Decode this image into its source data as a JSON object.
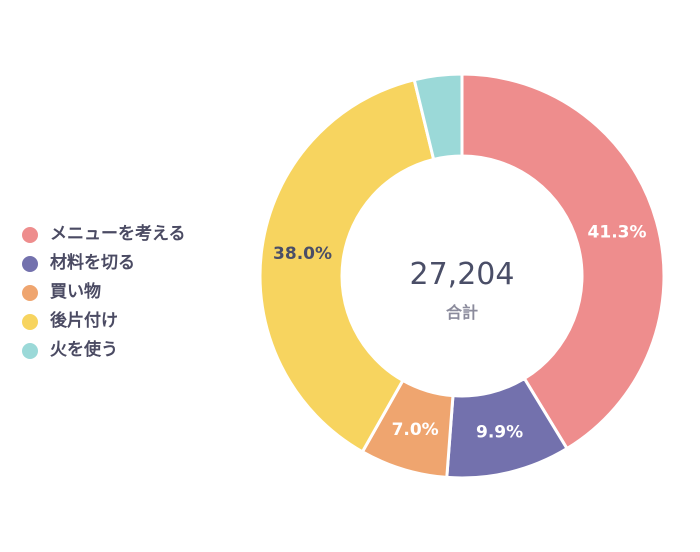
{
  "chart_data": {
    "type": "pie",
    "total": "27,204",
    "total_label": "合計",
    "categories": [
      "メニューを考える",
      "材料を切る",
      "買い物",
      "後片付け",
      "火を使う"
    ],
    "values": [
      41.3,
      9.9,
      7.0,
      38.0,
      3.8
    ],
    "value_labels": [
      "41.3%",
      "9.9%",
      "7.0%",
      "38.0%",
      ""
    ],
    "colors": [
      "#ee8d8d",
      "#7371ad",
      "#efa56f",
      "#f7d45f",
      "#9bd9d8"
    ],
    "legend_position": "left"
  }
}
